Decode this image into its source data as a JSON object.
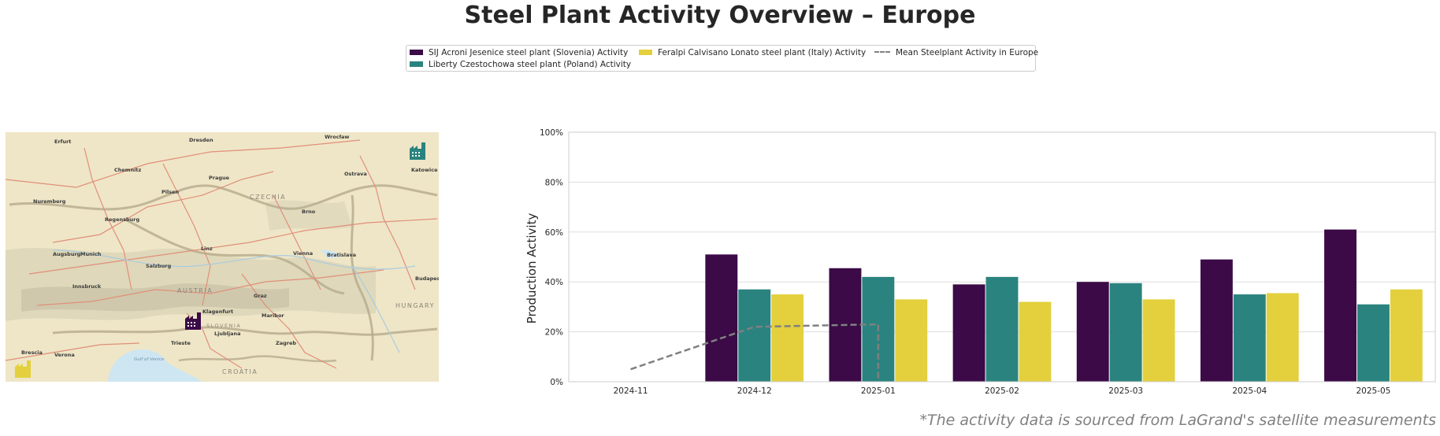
{
  "title": "Steel Plant Activity Overview – Europe",
  "footnote": "*The activity data is sourced from LaGrand's satellite measurements",
  "legend": {
    "items": [
      {
        "label": "SIJ Acroni Jesenice steel plant (Slovenia) Activity",
        "color": "#3b0a47",
        "kind": "bar"
      },
      {
        "label": "Liberty Czestochowa steel plant (Poland) Activity",
        "color": "#2a837e",
        "kind": "bar"
      },
      {
        "label": "Feralpi Calvisano Lonato steel plant (Italy) Activity",
        "color": "#e3d03c",
        "kind": "bar"
      },
      {
        "label": "Mean Steelplant Activity in Europe",
        "color": "#808080",
        "kind": "dashed-line"
      }
    ]
  },
  "map": {
    "labels": {
      "country_czechia": "CZECHIA",
      "country_austria": "AUSTRIA",
      "country_hungary": "HUNGARY",
      "country_croatia": "CROATIA",
      "country_slovenia": "SLOVENIA",
      "city_prague": "Prague",
      "city_munich": "Munich",
      "city_vienna": "Vienna",
      "city_bratislava": "Bratislava",
      "city_ljubljana": "Ljubljana",
      "city_zagreb": "Zagreb",
      "city_budapest": "Budapest",
      "city_dresden": "Dresden",
      "city_wroclaw": "Wrocław",
      "city_nuremberg": "Nuremberg",
      "city_regensburg": "Regensburg",
      "city_linz": "Linz",
      "city_graz": "Graz",
      "city_salzburg": "Salzburg",
      "city_innsbruck": "Innsbruck",
      "city_brno": "Brno",
      "city_ostrava": "Ostrava",
      "city_katowice": "Katowice",
      "city_verona": "Verona",
      "city_brescia": "Brescia",
      "city_venice_gulf": "Gulf of Venice",
      "city_trieste": "Trieste",
      "city_klagenfurt": "Klagenfurt",
      "city_maribor": "Maribor",
      "city_pilsen": "Pilsen",
      "city_augsburg": "Augsburg",
      "city_erfurt": "Erfurt",
      "city_chemnitz": "Chemnitz"
    },
    "markers": [
      {
        "plant": "SIJ Acroni Jesenice steel plant (Slovenia)",
        "color": "#3b0a47",
        "icon": "factory-icon"
      },
      {
        "plant": "Liberty Czestochowa steel plant (Poland)",
        "color": "#2a837e",
        "icon": "factory-icon"
      },
      {
        "plant": "Feralpi Calvisano Lonato steel plant (Italy)",
        "color": "#e3d03c",
        "icon": "factory-icon"
      }
    ]
  },
  "chart_data": {
    "type": "bar",
    "title": "Steel Plant Activity Overview – Europe",
    "xlabel": "",
    "ylabel": "Production Activity",
    "categories": [
      "2024-11",
      "2024-12",
      "2025-01",
      "2025-02",
      "2025-03",
      "2025-04",
      "2025-05"
    ],
    "ylim": [
      0,
      100
    ],
    "yticks": [
      0,
      20,
      40,
      60,
      80,
      100
    ],
    "ytick_labels": [
      "0%",
      "20%",
      "40%",
      "60%",
      "80%",
      "100%"
    ],
    "grid": true,
    "legend_position": "top-center",
    "series": [
      {
        "name": "SIJ Acroni Jesenice steel plant (Slovenia) Activity",
        "color": "#3b0a47",
        "values": [
          null,
          51,
          45.5,
          39,
          40,
          49,
          61
        ]
      },
      {
        "name": "Liberty Czestochowa steel plant (Poland) Activity",
        "color": "#2a837e",
        "values": [
          null,
          37,
          42,
          42,
          39.5,
          35,
          31
        ]
      },
      {
        "name": "Feralpi Calvisano Lonato steel plant (Italy) Activity",
        "color": "#e3d03c",
        "values": [
          null,
          35,
          33,
          32,
          33,
          35.5,
          37
        ]
      }
    ],
    "line": {
      "name": "Mean Steelplant Activity in Europe",
      "color": "#808080",
      "style": "dashed",
      "x": [
        "2024-11",
        "2024-12",
        "2025-01",
        "2025-01"
      ],
      "values": [
        5,
        22,
        23,
        0
      ]
    }
  }
}
